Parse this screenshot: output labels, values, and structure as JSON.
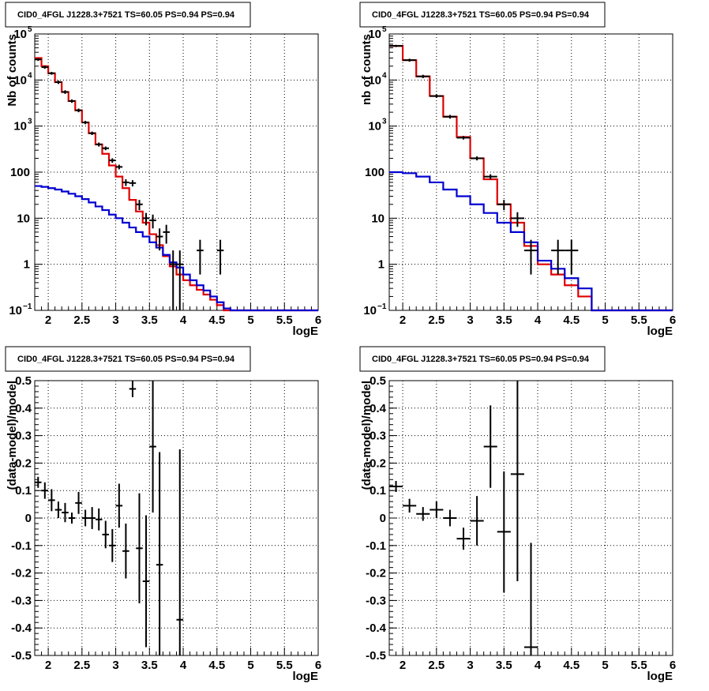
{
  "colors": {
    "data": "#000000",
    "total": "#e00000",
    "source": "#0000d0"
  },
  "chart_data": [
    {
      "type": "line",
      "title": "CID0_4FGL J1228.3+7521 TS=60.05 PS=0.94 PS=0.94",
      "xlabel": "logE",
      "ylabel": "Nb of counts",
      "yscale": "log",
      "xlim": [
        1.8,
        6
      ],
      "ylim": [
        0.1,
        100000
      ],
      "xticks": [
        "2",
        "2.5",
        "3",
        "3.5",
        "4",
        "4.5",
        "5",
        "5.5",
        "6"
      ],
      "grid": true,
      "histograms": [
        {
          "name": "total",
          "color": "#e00000",
          "edges": [
            1.8,
            1.9,
            2.0,
            2.1,
            2.2,
            2.3,
            2.4,
            2.5,
            2.6,
            2.7,
            2.8,
            2.9,
            3.0,
            3.1,
            3.2,
            3.3,
            3.4,
            3.5,
            3.6,
            3.7,
            3.8,
            3.9,
            4.0,
            4.1,
            4.2,
            4.3,
            4.4,
            4.5,
            4.6,
            4.7,
            4.8,
            5.0,
            6.0
          ],
          "values": [
            30000,
            20000,
            14000,
            9000,
            5500,
            3500,
            2200,
            1200,
            700,
            400,
            250,
            140,
            80,
            45,
            25,
            14,
            8,
            4.5,
            2.6,
            1.5,
            0.9,
            0.6,
            0.45,
            0.35,
            0.28,
            0.22,
            0.17,
            0.13,
            0.1,
            0.1,
            0.1,
            0.1
          ]
        },
        {
          "name": "source",
          "color": "#0000d0",
          "edges": [
            1.8,
            1.9,
            2.0,
            2.1,
            2.2,
            2.3,
            2.4,
            2.5,
            2.6,
            2.7,
            2.8,
            2.9,
            3.0,
            3.1,
            3.2,
            3.3,
            3.4,
            3.5,
            3.6,
            3.7,
            3.8,
            3.9,
            4.0,
            4.1,
            4.2,
            4.3,
            4.4,
            4.5,
            4.6,
            4.7,
            4.8,
            5.0,
            6.0
          ],
          "values": [
            50,
            48,
            45,
            42,
            38,
            34,
            30,
            26,
            22,
            18,
            15,
            12,
            10,
            8,
            6.3,
            5,
            4,
            3,
            2.3,
            1.6,
            1.1,
            0.85,
            0.6,
            0.45,
            0.35,
            0.27,
            0.2,
            0.15,
            0.11,
            0.1,
            0.1,
            0.1
          ]
        }
      ],
      "points": [
        {
          "x": 1.85,
          "y": 28000,
          "xerr": 0.05,
          "yerr": [
            2000,
            2000
          ]
        },
        {
          "x": 1.95,
          "y": 19000,
          "xerr": 0.05,
          "yerr": [
            1500,
            1500
          ]
        },
        {
          "x": 2.05,
          "y": 14000,
          "xerr": 0.05,
          "yerr": [
            1000,
            1000
          ]
        },
        {
          "x": 2.15,
          "y": 9000,
          "xerr": 0.05,
          "yerr": [
            800,
            800
          ]
        },
        {
          "x": 2.25,
          "y": 5500,
          "xerr": 0.05,
          "yerr": [
            500,
            500
          ]
        },
        {
          "x": 2.35,
          "y": 3500,
          "xerr": 0.05,
          "yerr": [
            300,
            300
          ]
        },
        {
          "x": 2.45,
          "y": 2200,
          "xerr": 0.05,
          "yerr": [
            200,
            200
          ]
        },
        {
          "x": 2.55,
          "y": 1200,
          "xerr": 0.05,
          "yerr": [
            100,
            100
          ]
        },
        {
          "x": 2.65,
          "y": 700,
          "xerr": 0.05,
          "yerr": [
            60,
            60
          ]
        },
        {
          "x": 2.75,
          "y": 400,
          "xerr": 0.05,
          "yerr": [
            40,
            40
          ]
        },
        {
          "x": 2.85,
          "y": 330,
          "xerr": 0.05,
          "yerr": [
            30,
            30
          ]
        },
        {
          "x": 2.95,
          "y": 180,
          "xerr": 0.05,
          "yerr": [
            20,
            20
          ]
        },
        {
          "x": 3.05,
          "y": 130,
          "xerr": 0.05,
          "yerr": [
            15,
            15
          ]
        },
        {
          "x": 3.15,
          "y": 60,
          "xerr": 0.05,
          "yerr": [
            10,
            10
          ]
        },
        {
          "x": 3.25,
          "y": 58,
          "xerr": 0.05,
          "yerr": [
            9,
            9
          ]
        },
        {
          "x": 3.35,
          "y": 20,
          "xerr": 0.05,
          "yerr": [
            5,
            5
          ]
        },
        {
          "x": 3.45,
          "y": 10,
          "xerr": 0.05,
          "yerr": [
            3,
            3
          ]
        },
        {
          "x": 3.55,
          "y": 9,
          "xerr": 0.05,
          "yerr": [
            3,
            3
          ]
        },
        {
          "x": 3.65,
          "y": 4,
          "xerr": 0.05,
          "yerr": [
            2,
            2
          ]
        },
        {
          "x": 3.75,
          "y": 5,
          "xerr": 0.05,
          "yerr": [
            2.2,
            2.2
          ]
        },
        {
          "x": 3.85,
          "y": 1,
          "xerr": 0.05,
          "yerr": [
            0.95,
            1
          ]
        },
        {
          "x": 3.95,
          "y": 1,
          "xerr": 0.05,
          "yerr": [
            0.95,
            1
          ]
        },
        {
          "x": 4.25,
          "y": 2,
          "xerr": 0.05,
          "yerr": [
            1.4,
            1.4
          ]
        },
        {
          "x": 4.55,
          "y": 2,
          "xerr": 0.05,
          "yerr": [
            1.4,
            1.4
          ]
        }
      ]
    },
    {
      "type": "line",
      "title": "CID0_4FGL J1228.3+7521 TS=60.05 PS=0.94 PS=0.94",
      "xlabel": "logE",
      "ylabel": "nb of counts",
      "yscale": "log",
      "xlim": [
        1.8,
        6
      ],
      "ylim": [
        0.1,
        100000
      ],
      "xticks": [
        "2",
        "2.5",
        "3",
        "3.5",
        "4",
        "4.5",
        "5",
        "5.5",
        "6"
      ],
      "grid": true,
      "histograms": [
        {
          "name": "total",
          "color": "#e00000",
          "edges": [
            1.8,
            2.0,
            2.2,
            2.4,
            2.6,
            2.8,
            3.0,
            3.2,
            3.4,
            3.6,
            3.8,
            4.0,
            4.2,
            4.4,
            4.6,
            4.8,
            5.0,
            6.0
          ],
          "values": [
            55000,
            27000,
            12000,
            4500,
            1600,
            580,
            200,
            70,
            20,
            8,
            2.5,
            1.0,
            0.6,
            0.35,
            0.2,
            0.1,
            0.1
          ]
        },
        {
          "name": "source",
          "color": "#0000d0",
          "edges": [
            1.8,
            2.0,
            2.2,
            2.4,
            2.6,
            2.8,
            3.0,
            3.2,
            3.4,
            3.6,
            3.8,
            4.0,
            4.2,
            4.4,
            4.6,
            4.8,
            5.0,
            6.0
          ],
          "values": [
            100,
            95,
            80,
            60,
            42,
            30,
            20,
            13,
            8,
            5,
            3,
            1.2,
            0.8,
            0.5,
            0.3,
            0.1,
            0.1
          ]
        }
      ],
      "points": [
        {
          "x": 1.9,
          "y": 55000,
          "xerr": 0.1,
          "yerr": [
            3000,
            3000
          ]
        },
        {
          "x": 2.1,
          "y": 27000,
          "xerr": 0.1,
          "yerr": [
            2000,
            2000
          ]
        },
        {
          "x": 2.3,
          "y": 12000,
          "xerr": 0.1,
          "yerr": [
            1000,
            1000
          ]
        },
        {
          "x": 2.5,
          "y": 4500,
          "xerr": 0.1,
          "yerr": [
            400,
            400
          ]
        },
        {
          "x": 2.7,
          "y": 1600,
          "xerr": 0.1,
          "yerr": [
            150,
            150
          ]
        },
        {
          "x": 2.9,
          "y": 560,
          "xerr": 0.1,
          "yerr": [
            50,
            50
          ]
        },
        {
          "x": 3.1,
          "y": 200,
          "xerr": 0.1,
          "yerr": [
            20,
            20
          ]
        },
        {
          "x": 3.3,
          "y": 80,
          "xerr": 0.1,
          "yerr": [
            10,
            10
          ]
        },
        {
          "x": 3.5,
          "y": 20,
          "xerr": 0.1,
          "yerr": [
            5,
            5
          ]
        },
        {
          "x": 3.7,
          "y": 10,
          "xerr": 0.1,
          "yerr": [
            3.5,
            3.5
          ]
        },
        {
          "x": 3.9,
          "y": 2,
          "xerr": 0.1,
          "yerr": [
            1.4,
            1.4
          ]
        },
        {
          "x": 4.3,
          "y": 2,
          "xerr": 0.1,
          "yerr": [
            1.4,
            1.4
          ]
        },
        {
          "x": 4.5,
          "y": 2,
          "xerr": 0.1,
          "yerr": [
            1.4,
            1.4
          ]
        }
      ]
    },
    {
      "type": "scatter",
      "title": "CID0_4FGL J1228.3+7521 TS=60.05 PS=0.94 PS=0.94",
      "xlabel": "logE",
      "ylabel": "(data-model)/model",
      "yscale": "linear",
      "xlim": [
        1.8,
        6
      ],
      "ylim": [
        -0.5,
        0.5
      ],
      "xticks": [
        "2",
        "2.5",
        "3",
        "3.5",
        "4",
        "4.5",
        "5",
        "5.5",
        "6"
      ],
      "yticks": [
        "-0.5",
        "-0.4",
        "-0.3",
        "-0.2",
        "-0.1",
        "0",
        "0.1",
        "0.2",
        "0.3",
        "0.4",
        "0.5"
      ],
      "grid": true,
      "points": [
        {
          "x": 1.85,
          "y": 0.13,
          "xerr": 0.05,
          "yerr": [
            0.02,
            0.02
          ]
        },
        {
          "x": 1.95,
          "y": 0.1,
          "xerr": 0.05,
          "yerr": [
            0.03,
            0.03
          ]
        },
        {
          "x": 2.05,
          "y": 0.065,
          "xerr": 0.05,
          "yerr": [
            0.04,
            0.04
          ]
        },
        {
          "x": 2.15,
          "y": 0.03,
          "xerr": 0.05,
          "yerr": [
            0.03,
            0.03
          ]
        },
        {
          "x": 2.25,
          "y": 0.02,
          "xerr": 0.05,
          "yerr": [
            0.035,
            0.035
          ]
        },
        {
          "x": 2.35,
          "y": 0.0,
          "xerr": 0.05,
          "yerr": [
            0.02,
            0.02
          ]
        },
        {
          "x": 2.45,
          "y": 0.055,
          "xerr": 0.05,
          "yerr": [
            0.04,
            0.04
          ]
        },
        {
          "x": 2.55,
          "y": 0.0,
          "xerr": 0.05,
          "yerr": [
            0.03,
            0.03
          ]
        },
        {
          "x": 2.65,
          "y": 0.0,
          "xerr": 0.05,
          "yerr": [
            0.04,
            0.04
          ]
        },
        {
          "x": 2.75,
          "y": -0.005,
          "xerr": 0.05,
          "yerr": [
            0.04,
            0.04
          ]
        },
        {
          "x": 2.85,
          "y": -0.06,
          "xerr": 0.05,
          "yerr": [
            0.05,
            0.05
          ]
        },
        {
          "x": 2.95,
          "y": -0.1,
          "xerr": 0.05,
          "yerr": [
            0.06,
            0.06
          ]
        },
        {
          "x": 3.05,
          "y": 0.045,
          "xerr": 0.05,
          "yerr": [
            0.08,
            0.08
          ]
        },
        {
          "x": 3.15,
          "y": -0.12,
          "xerr": 0.05,
          "yerr": [
            0.1,
            0.1
          ]
        },
        {
          "x": 3.25,
          "y": 0.47,
          "xerr": 0.05,
          "yerr": [
            0.03,
            0.03
          ]
        },
        {
          "x": 3.35,
          "y": -0.11,
          "xerr": 0.05,
          "yerr": [
            0.2,
            0.2
          ]
        },
        {
          "x": 3.45,
          "y": -0.23,
          "xerr": 0.05,
          "yerr": [
            0.24,
            0.24
          ]
        },
        {
          "x": 3.55,
          "y": 0.26,
          "xerr": 0.05,
          "yerr": [
            0.24,
            0.24
          ]
        },
        {
          "x": 3.65,
          "y": -0.17,
          "xerr": 0.05,
          "yerr": [
            0.33,
            0.41
          ]
        },
        {
          "x": 3.95,
          "y": -0.37,
          "xerr": 0.05,
          "yerr": [
            0.13,
            0.62
          ]
        }
      ]
    },
    {
      "type": "scatter",
      "title": "CID0_4FGL J1228.3+7521 TS=60.05 PS=0.94 PS=0.94",
      "xlabel": "logE",
      "ylabel": "(data-model)/model",
      "yscale": "linear",
      "xlim": [
        1.8,
        6
      ],
      "ylim": [
        -0.5,
        0.5
      ],
      "xticks": [
        "2",
        "2.5",
        "3",
        "3.5",
        "4",
        "4.5",
        "5",
        "5.5",
        "6"
      ],
      "yticks": [
        "-0.5",
        "-0.4",
        "-0.3",
        "-0.2",
        "-0.1",
        "0",
        "0.1",
        "0.2",
        "0.3",
        "0.4",
        "0.5"
      ],
      "grid": true,
      "points": [
        {
          "x": 1.9,
          "y": 0.115,
          "xerr": 0.1,
          "yerr": [
            0.02,
            0.02
          ]
        },
        {
          "x": 2.1,
          "y": 0.045,
          "xerr": 0.1,
          "yerr": [
            0.025,
            0.025
          ]
        },
        {
          "x": 2.3,
          "y": 0.015,
          "xerr": 0.1,
          "yerr": [
            0.025,
            0.025
          ]
        },
        {
          "x": 2.5,
          "y": 0.03,
          "xerr": 0.1,
          "yerr": [
            0.03,
            0.03
          ]
        },
        {
          "x": 2.7,
          "y": 0.0,
          "xerr": 0.1,
          "yerr": [
            0.03,
            0.03
          ]
        },
        {
          "x": 2.9,
          "y": -0.075,
          "xerr": 0.1,
          "yerr": [
            0.04,
            0.04
          ]
        },
        {
          "x": 3.1,
          "y": -0.01,
          "xerr": 0.1,
          "yerr": [
            0.09,
            0.09
          ]
        },
        {
          "x": 3.3,
          "y": 0.26,
          "xerr": 0.1,
          "yerr": [
            0.15,
            0.15
          ]
        },
        {
          "x": 3.5,
          "y": -0.05,
          "xerr": 0.1,
          "yerr": [
            0.22,
            0.22
          ]
        },
        {
          "x": 3.7,
          "y": 0.16,
          "xerr": 0.1,
          "yerr": [
            0.39,
            0.34
          ]
        },
        {
          "x": 3.9,
          "y": -0.47,
          "xerr": 0.1,
          "yerr": [
            0.03,
            0.38
          ]
        }
      ]
    }
  ]
}
